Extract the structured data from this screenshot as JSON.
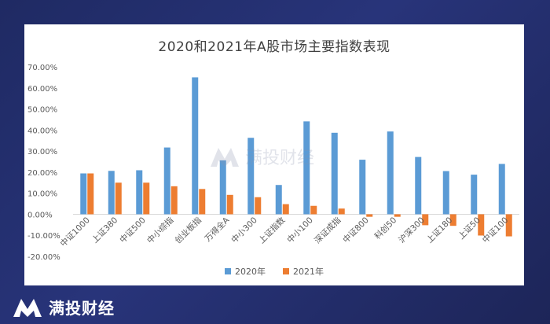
{
  "brand": {
    "name": "满投财经"
  },
  "colors": {
    "series_2020": "#5b9bd5",
    "series_2021": "#ed7d31",
    "grid": "#d9d9d9"
  },
  "chart_data": {
    "type": "bar",
    "title": "2020和2021年A股市场主要指数表现",
    "categories": [
      "中证1000",
      "上证380",
      "中证500",
      "中小综指",
      "创业板指",
      "万得全A",
      "中小300",
      "上证指数",
      "中小100",
      "深证成指",
      "中证800",
      "科创50",
      "沪深300",
      "上证180",
      "上证50",
      "中证100"
    ],
    "series": [
      {
        "name": "2020年",
        "values": [
          19.4,
          20.6,
          20.9,
          31.7,
          65.0,
          25.6,
          36.3,
          13.9,
          44.1,
          38.7,
          25.9,
          39.3,
          27.2,
          20.5,
          18.8,
          23.9
        ]
      },
      {
        "name": "2021年",
        "values": [
          19.4,
          15.0,
          15.0,
          13.3,
          12.0,
          9.2,
          8.1,
          4.8,
          4.0,
          2.7,
          -1.2,
          -1.2,
          -5.2,
          -5.5,
          -10.1,
          -10.5
        ]
      }
    ],
    "y_ticks": [
      "-20.00%",
      "-10.00%",
      "0.00%",
      "10.00%",
      "20.00%",
      "30.00%",
      "40.00%",
      "50.00%",
      "60.00%",
      "70.00%"
    ],
    "ylim": [
      -20,
      70
    ],
    "grid": false,
    "legend": "bottom"
  }
}
